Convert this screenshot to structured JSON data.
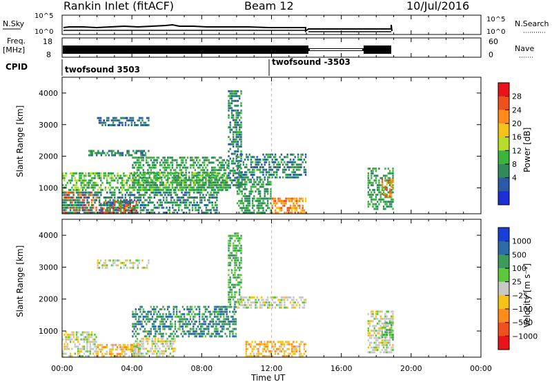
{
  "header": {
    "title": "Rankin Inlet (fitACF)",
    "beam": "Beam 12",
    "date": "10/Jul/2016"
  },
  "panels": {
    "nsky": {
      "label": "N.Sky",
      "left_ticks": [
        "10^5",
        "10^0"
      ],
      "right_ticks": [
        "10^5",
        "10^0"
      ],
      "right_label": "N.Search"
    },
    "freq": {
      "label": "Freq.",
      "unit": "[MHz]",
      "left_ticks": [
        "18",
        "8"
      ],
      "right_ticks": [
        "60",
        "0"
      ],
      "right_label": "Nave"
    },
    "cpid": {
      "label": "CPID",
      "modes": [
        "twofsound 3503",
        "twofsound -3503"
      ]
    }
  },
  "power_panel": {
    "ylabel": "Slant Range [km]",
    "yticks": [
      "4000",
      "3000",
      "2000",
      "1000"
    ],
    "colorbar": {
      "label": "Power [dB]",
      "ticks": [
        "28",
        "24",
        "20",
        "16",
        "12",
        "8",
        "4"
      ],
      "colors": [
        "#e8141a",
        "#f0501c",
        "#ff8c1a",
        "#f5c21a",
        "#b8dc2a",
        "#3cb43c",
        "#2f8a5c",
        "#2c5aa8",
        "#1a2fd6"
      ]
    }
  },
  "velocity_panel": {
    "ylabel": "Slant Range [km]",
    "yticks": [
      "4000",
      "3000",
      "2000",
      "1000"
    ],
    "colorbar": {
      "label": "Velocity [m s⁻¹]",
      "ticks": [
        "1000",
        "500",
        "100",
        "25",
        "−25",
        "−100",
        "−500",
        "−1000"
      ],
      "colors": [
        "#1a3fd6",
        "#2c6aa8",
        "#3c9a5c",
        "#5cc83c",
        "#c8c8c8",
        "#f5c21a",
        "#ff8c1a",
        "#f0501c",
        "#e8141a"
      ]
    }
  },
  "xaxis": {
    "ticks": [
      "00:00",
      "04:00",
      "08:00",
      "12:00",
      "16:00",
      "20:00",
      "00:00"
    ],
    "label": "Time UT"
  },
  "chart_data": {
    "type": "heatmap",
    "title": "Rankin Inlet (fitACF)",
    "subtitle": "Beam 12",
    "xlabel": "Time UT",
    "ylabel": "Slant Range [km]",
    "xlim": [
      "00:00",
      "24:00"
    ],
    "ylim": [
      180,
      4500
    ],
    "power_clim": [
      0,
      30
    ],
    "velocity_clim": [
      -1200,
      1200
    ],
    "cpid_switch_time": "12:00",
    "data_gap": [
      "14:00",
      "17:30"
    ],
    "data_end": "19:00",
    "power_regions": [
      {
        "t0": 0.0,
        "t1": 2.0,
        "r0": 180,
        "r1": 900,
        "power": 24
      },
      {
        "t0": 2.0,
        "t1": 4.3,
        "r0": 180,
        "r1": 600,
        "power": 26
      },
      {
        "t0": 0.0,
        "t1": 9.5,
        "r0": 900,
        "r1": 1500,
        "power": 12
      },
      {
        "t0": 4.0,
        "t1": 9.5,
        "r0": 900,
        "r1": 2000,
        "power": 10
      },
      {
        "t0": 1.5,
        "t1": 5.0,
        "r0": 2000,
        "r1": 2200,
        "power": 8
      },
      {
        "t0": 2.0,
        "t1": 5.0,
        "r0": 2950,
        "r1": 3250,
        "power": 6
      },
      {
        "t0": 0.0,
        "t1": 9.0,
        "r0": 180,
        "r1": 900,
        "power": 8
      },
      {
        "t0": 9.5,
        "t1": 10.3,
        "r0": 900,
        "r1": 4100,
        "power": 8
      },
      {
        "t0": 10.0,
        "t1": 14.0,
        "r0": 1300,
        "r1": 2100,
        "power": 8
      },
      {
        "t0": 10.0,
        "t1": 12.0,
        "r0": 180,
        "r1": 1300,
        "power": 10
      },
      {
        "t0": 12.0,
        "t1": 14.0,
        "r0": 180,
        "r1": 700,
        "power": 22
      },
      {
        "t0": 17.5,
        "t1": 19.0,
        "r0": 300,
        "r1": 1650,
        "power": 10
      },
      {
        "t0": 18.3,
        "t1": 19.0,
        "r0": 700,
        "r1": 1300,
        "power": 22
      }
    ],
    "velocity_regions": [
      {
        "t0": 0.0,
        "t1": 2.0,
        "r0": 180,
        "r1": 1000,
        "velocity": 0
      },
      {
        "t0": 2.0,
        "t1": 4.5,
        "r0": 180,
        "r1": 600,
        "velocity": -300
      },
      {
        "t0": 4.0,
        "t1": 6.5,
        "r0": 180,
        "r1": 800,
        "velocity": 0
      },
      {
        "t0": 4.0,
        "t1": 10.0,
        "r0": 800,
        "r1": 1800,
        "velocity": 600
      },
      {
        "t0": 2.0,
        "t1": 5.0,
        "r0": 2950,
        "r1": 3250,
        "velocity": 0
      },
      {
        "t0": 9.5,
        "t1": 10.3,
        "r0": 1800,
        "r1": 4100,
        "velocity": 400
      },
      {
        "t0": 10.0,
        "t1": 14.0,
        "r0": 1700,
        "r1": 2100,
        "velocity": 0
      },
      {
        "t0": 10.5,
        "t1": 14.0,
        "r0": 180,
        "r1": 700,
        "velocity": -300
      },
      {
        "t0": 17.5,
        "t1": 19.0,
        "r0": 300,
        "r1": 1650,
        "velocity": 0
      },
      {
        "t0": 18.3,
        "t1": 19.0,
        "r0": 700,
        "r1": 1300,
        "velocity": 300
      }
    ]
  }
}
